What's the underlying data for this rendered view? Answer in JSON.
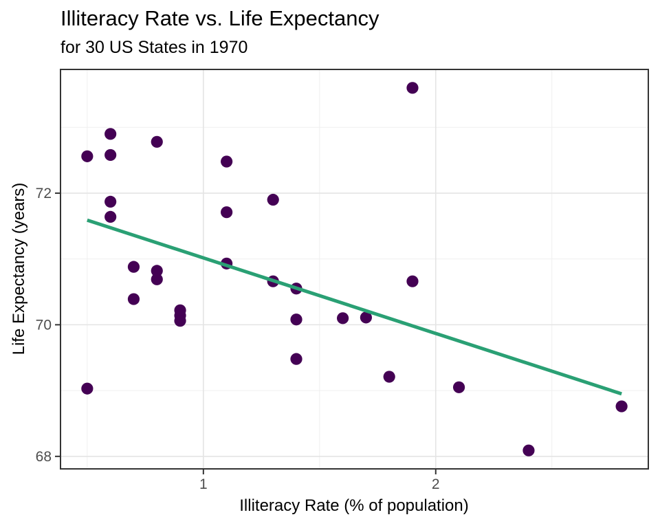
{
  "figure": {
    "title": "Illiteracy Rate vs. Life Expectancy",
    "subtitle": "for 30 US States in 1970"
  },
  "axes": {
    "x_label": "Illiteracy Rate (% of population)",
    "y_label": "Life Expectancy (years)"
  },
  "chart_data": {
    "type": "scatter",
    "title": "Illiteracy Rate vs. Life Expectancy",
    "subtitle": "for 30 US States in 1970",
    "xlabel": "Illiteracy Rate (% of population)",
    "ylabel": "Life Expectancy (years)",
    "xlim": [
      0.385,
      2.915
    ],
    "ylim": [
      67.81,
      73.88
    ],
    "x_major_ticks": [
      1,
      2
    ],
    "x_minor_ticks": [
      0.5,
      1.5,
      2.5
    ],
    "y_major_ticks": [
      68,
      70,
      72
    ],
    "y_minor_ticks": [
      69,
      71,
      73
    ],
    "grid": "on",
    "legend": "none",
    "n_points": 30,
    "points": [
      [
        0.5,
        72.56
      ],
      [
        0.6,
        72.9
      ],
      [
        0.6,
        72.58
      ],
      [
        0.8,
        72.78
      ],
      [
        1.1,
        72.48
      ],
      [
        1.3,
        71.9
      ],
      [
        0.6,
        71.87
      ],
      [
        0.6,
        71.64
      ],
      [
        1.1,
        71.71
      ],
      [
        1.1,
        70.93
      ],
      [
        0.7,
        70.88
      ],
      [
        0.8,
        70.82
      ],
      [
        0.8,
        70.69
      ],
      [
        0.7,
        70.39
      ],
      [
        0.9,
        70.22
      ],
      [
        0.9,
        70.14
      ],
      [
        0.9,
        70.06
      ],
      [
        1.3,
        70.66
      ],
      [
        1.4,
        70.55
      ],
      [
        1.4,
        70.08
      ],
      [
        1.6,
        70.1
      ],
      [
        1.7,
        70.11
      ],
      [
        1.4,
        69.48
      ],
      [
        0.5,
        69.03
      ],
      [
        1.9,
        73.6
      ],
      [
        1.9,
        70.66
      ],
      [
        1.8,
        69.21
      ],
      [
        2.1,
        69.05
      ],
      [
        2.8,
        68.76
      ],
      [
        2.4,
        68.09
      ]
    ],
    "trend_line": {
      "x1": 0.5,
      "y1": 71.59,
      "x2": 2.8,
      "y2": 68.95
    },
    "colors": {
      "point": "#440154",
      "trend": "#2aa074",
      "grid_major": "#e4e4e4",
      "grid_minor": "#efefef",
      "panel_border": "#333333",
      "tick_mark": "#333333",
      "tick_label": "#4d4d4d",
      "panel_background": "#ffffff"
    }
  }
}
